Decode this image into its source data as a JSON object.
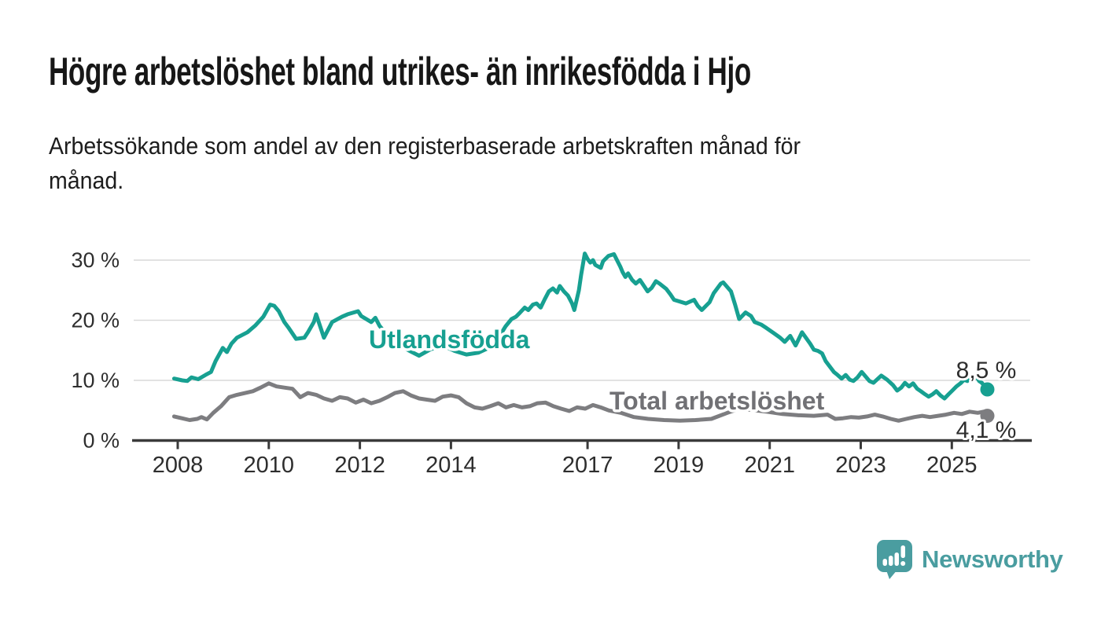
{
  "header": {
    "title": "Högre arbetslöshet bland utrikes- än inrikesfödda i Hjo",
    "subtitle_line1": "Arbetssökande som andel av den registerbaserade arbetskraften månad för",
    "subtitle_line2": "månad."
  },
  "colors": {
    "background": "#ffffff",
    "grid": "#d9d9d9",
    "axis": "#3a3a3a",
    "tick_label": "#2e2e2e"
  },
  "branding": {
    "wordmark": "Newsworthy",
    "color": "#4a9da0",
    "icon": "newsworthy-speech-bubble-bar-chart-icon"
  },
  "chart_data": {
    "type": "line",
    "title": "Högre arbetslöshet bland utrikes- än inrikesfödda i Hjo",
    "subtitle": "Arbetssökande som andel av den registerbaserade arbetskraften månad för månad.",
    "xlabel": "",
    "ylabel": "",
    "unit": "%",
    "grid": true,
    "legend": "inline-labels",
    "x_axis": {
      "range": [
        2007.8,
        2026.3
      ],
      "ticks": [
        {
          "value": 2008,
          "label": "2008"
        },
        {
          "value": 2010,
          "label": "2010"
        },
        {
          "value": 2012,
          "label": "2012"
        },
        {
          "value": 2014,
          "label": "2014"
        },
        {
          "value": 2017,
          "label": "2017"
        },
        {
          "value": 2019,
          "label": "2019"
        },
        {
          "value": 2021,
          "label": "2021"
        },
        {
          "value": 2023,
          "label": "2023"
        },
        {
          "value": 2025,
          "label": "2025"
        }
      ]
    },
    "y_axis": {
      "range": [
        0,
        32
      ],
      "ticks": [
        {
          "value": 0,
          "label": "0 %"
        },
        {
          "value": 10,
          "label": "10 %"
        },
        {
          "value": 20,
          "label": "20 %"
        },
        {
          "value": 30,
          "label": "30 %"
        }
      ]
    },
    "series": [
      {
        "name": "Total arbetslöshet",
        "color": "#7d7d80",
        "label_color": "#717175",
        "end_label": "4,1 %",
        "end_value": 4.1,
        "points": [
          [
            2007.92,
            4.0
          ],
          [
            2008.09,
            3.7
          ],
          [
            2008.26,
            3.4
          ],
          [
            2008.43,
            3.6
          ],
          [
            2008.52,
            3.9
          ],
          [
            2008.64,
            3.5
          ],
          [
            2008.78,
            4.6
          ],
          [
            2008.95,
            5.7
          ],
          [
            2009.13,
            7.2
          ],
          [
            2009.3,
            7.6
          ],
          [
            2009.48,
            7.9
          ],
          [
            2009.65,
            8.2
          ],
          [
            2009.82,
            8.8
          ],
          [
            2010.0,
            9.5
          ],
          [
            2010.17,
            9.0
          ],
          [
            2010.34,
            8.8
          ],
          [
            2010.52,
            8.6
          ],
          [
            2010.69,
            7.2
          ],
          [
            2010.86,
            7.9
          ],
          [
            2011.04,
            7.6
          ],
          [
            2011.21,
            7.0
          ],
          [
            2011.39,
            6.6
          ],
          [
            2011.56,
            7.2
          ],
          [
            2011.73,
            7.0
          ],
          [
            2011.91,
            6.3
          ],
          [
            2012.08,
            6.8
          ],
          [
            2012.25,
            6.2
          ],
          [
            2012.43,
            6.6
          ],
          [
            2012.6,
            7.2
          ],
          [
            2012.77,
            7.9
          ],
          [
            2012.95,
            8.2
          ],
          [
            2013.12,
            7.5
          ],
          [
            2013.3,
            7.0
          ],
          [
            2013.47,
            6.8
          ],
          [
            2013.65,
            6.6
          ],
          [
            2013.82,
            7.3
          ],
          [
            2014.0,
            7.5
          ],
          [
            2014.17,
            7.2
          ],
          [
            2014.34,
            6.2
          ],
          [
            2014.52,
            5.5
          ],
          [
            2014.69,
            5.3
          ],
          [
            2014.86,
            5.7
          ],
          [
            2015.04,
            6.2
          ],
          [
            2015.21,
            5.5
          ],
          [
            2015.38,
            5.9
          ],
          [
            2015.56,
            5.5
          ],
          [
            2015.73,
            5.7
          ],
          [
            2015.9,
            6.2
          ],
          [
            2016.08,
            6.3
          ],
          [
            2016.25,
            5.7
          ],
          [
            2016.42,
            5.3
          ],
          [
            2016.6,
            4.9
          ],
          [
            2016.77,
            5.5
          ],
          [
            2016.95,
            5.3
          ],
          [
            2017.12,
            5.9
          ],
          [
            2017.29,
            5.5
          ],
          [
            2017.47,
            5.0
          ],
          [
            2017.73,
            4.6
          ],
          [
            2018.02,
            3.9
          ],
          [
            2018.33,
            3.6
          ],
          [
            2018.68,
            3.4
          ],
          [
            2019.03,
            3.3
          ],
          [
            2019.37,
            3.4
          ],
          [
            2019.72,
            3.6
          ],
          [
            2020.07,
            4.6
          ],
          [
            2020.33,
            5.3
          ],
          [
            2020.59,
            5.1
          ],
          [
            2020.93,
            4.8
          ],
          [
            2021.28,
            4.4
          ],
          [
            2021.63,
            4.2
          ],
          [
            2021.97,
            4.1
          ],
          [
            2022.27,
            4.3
          ],
          [
            2022.44,
            3.6
          ],
          [
            2022.61,
            3.7
          ],
          [
            2022.79,
            3.9
          ],
          [
            2022.96,
            3.8
          ],
          [
            2023.14,
            4.0
          ],
          [
            2023.31,
            4.3
          ],
          [
            2023.48,
            4.0
          ],
          [
            2023.66,
            3.6
          ],
          [
            2023.83,
            3.3
          ],
          [
            2024.0,
            3.6
          ],
          [
            2024.18,
            3.9
          ],
          [
            2024.35,
            4.1
          ],
          [
            2024.52,
            3.9
          ],
          [
            2024.7,
            4.1
          ],
          [
            2024.87,
            4.3
          ],
          [
            2025.05,
            4.6
          ],
          [
            2025.22,
            4.4
          ],
          [
            2025.39,
            4.8
          ],
          [
            2025.57,
            4.6
          ],
          [
            2025.7,
            4.8
          ],
          [
            2025.78,
            4.1
          ]
        ]
      },
      {
        "name": "Utlandsfödda",
        "color": "#17a091",
        "label_color": "#17a091",
        "end_label": "8,5 %",
        "end_value": 8.5,
        "points": [
          [
            2007.92,
            10.3
          ],
          [
            2008.1,
            10.0
          ],
          [
            2008.21,
            9.9
          ],
          [
            2008.3,
            10.5
          ],
          [
            2008.45,
            10.2
          ],
          [
            2008.61,
            10.9
          ],
          [
            2008.73,
            11.4
          ],
          [
            2008.83,
            13.2
          ],
          [
            2008.99,
            15.4
          ],
          [
            2009.08,
            14.7
          ],
          [
            2009.18,
            16.1
          ],
          [
            2009.3,
            17.1
          ],
          [
            2009.53,
            18.0
          ],
          [
            2009.7,
            19.1
          ],
          [
            2009.88,
            20.6
          ],
          [
            2010.03,
            22.6
          ],
          [
            2010.12,
            22.4
          ],
          [
            2010.22,
            21.5
          ],
          [
            2010.34,
            19.7
          ],
          [
            2010.43,
            18.8
          ],
          [
            2010.6,
            16.9
          ],
          [
            2010.78,
            17.1
          ],
          [
            2010.86,
            18.0
          ],
          [
            2010.99,
            19.7
          ],
          [
            2011.04,
            21.0
          ],
          [
            2011.21,
            17.1
          ],
          [
            2011.39,
            19.7
          ],
          [
            2011.61,
            20.6
          ],
          [
            2011.73,
            21.0
          ],
          [
            2011.96,
            21.5
          ],
          [
            2012.03,
            20.7
          ],
          [
            2012.25,
            19.7
          ],
          [
            2012.34,
            20.4
          ],
          [
            2012.43,
            19.1
          ],
          [
            2012.6,
            17.5
          ],
          [
            2012.77,
            16.5
          ],
          [
            2012.95,
            15.5
          ],
          [
            2013.12,
            14.8
          ],
          [
            2013.3,
            14.1
          ],
          [
            2013.56,
            15.2
          ],
          [
            2013.82,
            15.8
          ],
          [
            2014.08,
            14.9
          ],
          [
            2014.34,
            14.3
          ],
          [
            2014.6,
            14.6
          ],
          [
            2014.86,
            15.5
          ],
          [
            2015.08,
            17.5
          ],
          [
            2015.2,
            19.0
          ],
          [
            2015.33,
            20.2
          ],
          [
            2015.43,
            20.6
          ],
          [
            2015.52,
            21.3
          ],
          [
            2015.62,
            22.1
          ],
          [
            2015.7,
            21.7
          ],
          [
            2015.8,
            22.6
          ],
          [
            2015.88,
            22.8
          ],
          [
            2015.97,
            22.1
          ],
          [
            2016.06,
            23.5
          ],
          [
            2016.15,
            24.8
          ],
          [
            2016.24,
            25.3
          ],
          [
            2016.33,
            24.6
          ],
          [
            2016.39,
            25.7
          ],
          [
            2016.48,
            24.8
          ],
          [
            2016.57,
            24.1
          ],
          [
            2016.66,
            22.8
          ],
          [
            2016.71,
            21.7
          ],
          [
            2016.81,
            25.0
          ],
          [
            2016.86,
            27.6
          ],
          [
            2016.94,
            31.1
          ],
          [
            2017.0,
            30.2
          ],
          [
            2017.06,
            29.6
          ],
          [
            2017.12,
            30.0
          ],
          [
            2017.17,
            29.2
          ],
          [
            2017.29,
            28.7
          ],
          [
            2017.34,
            29.8
          ],
          [
            2017.46,
            30.7
          ],
          [
            2017.58,
            31.0
          ],
          [
            2017.66,
            29.8
          ],
          [
            2017.72,
            28.9
          ],
          [
            2017.77,
            28.0
          ],
          [
            2017.83,
            27.2
          ],
          [
            2017.89,
            27.8
          ],
          [
            2017.98,
            26.7
          ],
          [
            2018.06,
            26.1
          ],
          [
            2018.15,
            26.7
          ],
          [
            2018.24,
            25.7
          ],
          [
            2018.32,
            24.8
          ],
          [
            2018.41,
            25.4
          ],
          [
            2018.5,
            26.5
          ],
          [
            2018.58,
            26.1
          ],
          [
            2018.73,
            25.2
          ],
          [
            2018.82,
            24.3
          ],
          [
            2018.9,
            23.4
          ],
          [
            2019.16,
            22.8
          ],
          [
            2019.34,
            23.4
          ],
          [
            2019.42,
            22.4
          ],
          [
            2019.51,
            21.7
          ],
          [
            2019.68,
            23.0
          ],
          [
            2019.77,
            24.5
          ],
          [
            2019.93,
            26.1
          ],
          [
            2019.98,
            26.3
          ],
          [
            2020.15,
            24.8
          ],
          [
            2020.24,
            22.6
          ],
          [
            2020.33,
            20.2
          ],
          [
            2020.47,
            21.3
          ],
          [
            2020.59,
            20.7
          ],
          [
            2020.67,
            19.7
          ],
          [
            2020.81,
            19.3
          ],
          [
            2020.93,
            18.7
          ],
          [
            2021.1,
            17.8
          ],
          [
            2021.23,
            17.1
          ],
          [
            2021.33,
            16.4
          ],
          [
            2021.45,
            17.4
          ],
          [
            2021.57,
            15.8
          ],
          [
            2021.71,
            18.0
          ],
          [
            2021.89,
            16.1
          ],
          [
            2021.97,
            15.1
          ],
          [
            2022.06,
            14.9
          ],
          [
            2022.15,
            14.5
          ],
          [
            2022.23,
            13.2
          ],
          [
            2022.32,
            12.3
          ],
          [
            2022.41,
            11.4
          ],
          [
            2022.49,
            10.9
          ],
          [
            2022.58,
            10.3
          ],
          [
            2022.67,
            10.9
          ],
          [
            2022.76,
            10.1
          ],
          [
            2022.84,
            9.9
          ],
          [
            2022.93,
            10.5
          ],
          [
            2023.02,
            11.4
          ],
          [
            2023.19,
            9.9
          ],
          [
            2023.28,
            9.6
          ],
          [
            2023.45,
            10.8
          ],
          [
            2023.58,
            10.1
          ],
          [
            2023.71,
            9.2
          ],
          [
            2023.8,
            8.3
          ],
          [
            2023.89,
            8.8
          ],
          [
            2023.97,
            9.6
          ],
          [
            2024.06,
            9.0
          ],
          [
            2024.15,
            9.5
          ],
          [
            2024.24,
            8.6
          ],
          [
            2024.32,
            8.2
          ],
          [
            2024.41,
            7.7
          ],
          [
            2024.49,
            7.3
          ],
          [
            2024.58,
            7.7
          ],
          [
            2024.66,
            8.2
          ],
          [
            2024.75,
            7.5
          ],
          [
            2024.84,
            7.0
          ],
          [
            2024.93,
            7.7
          ],
          [
            2025.01,
            8.3
          ],
          [
            2025.1,
            9.0
          ],
          [
            2025.19,
            9.5
          ],
          [
            2025.27,
            10.1
          ],
          [
            2025.34,
            9.9
          ],
          [
            2025.41,
            10.5
          ],
          [
            2025.48,
            10.1
          ],
          [
            2025.53,
            10.8
          ],
          [
            2025.6,
            9.9
          ],
          [
            2025.66,
            9.6
          ],
          [
            2025.72,
            9.0
          ],
          [
            2025.78,
            8.5
          ]
        ]
      }
    ]
  }
}
